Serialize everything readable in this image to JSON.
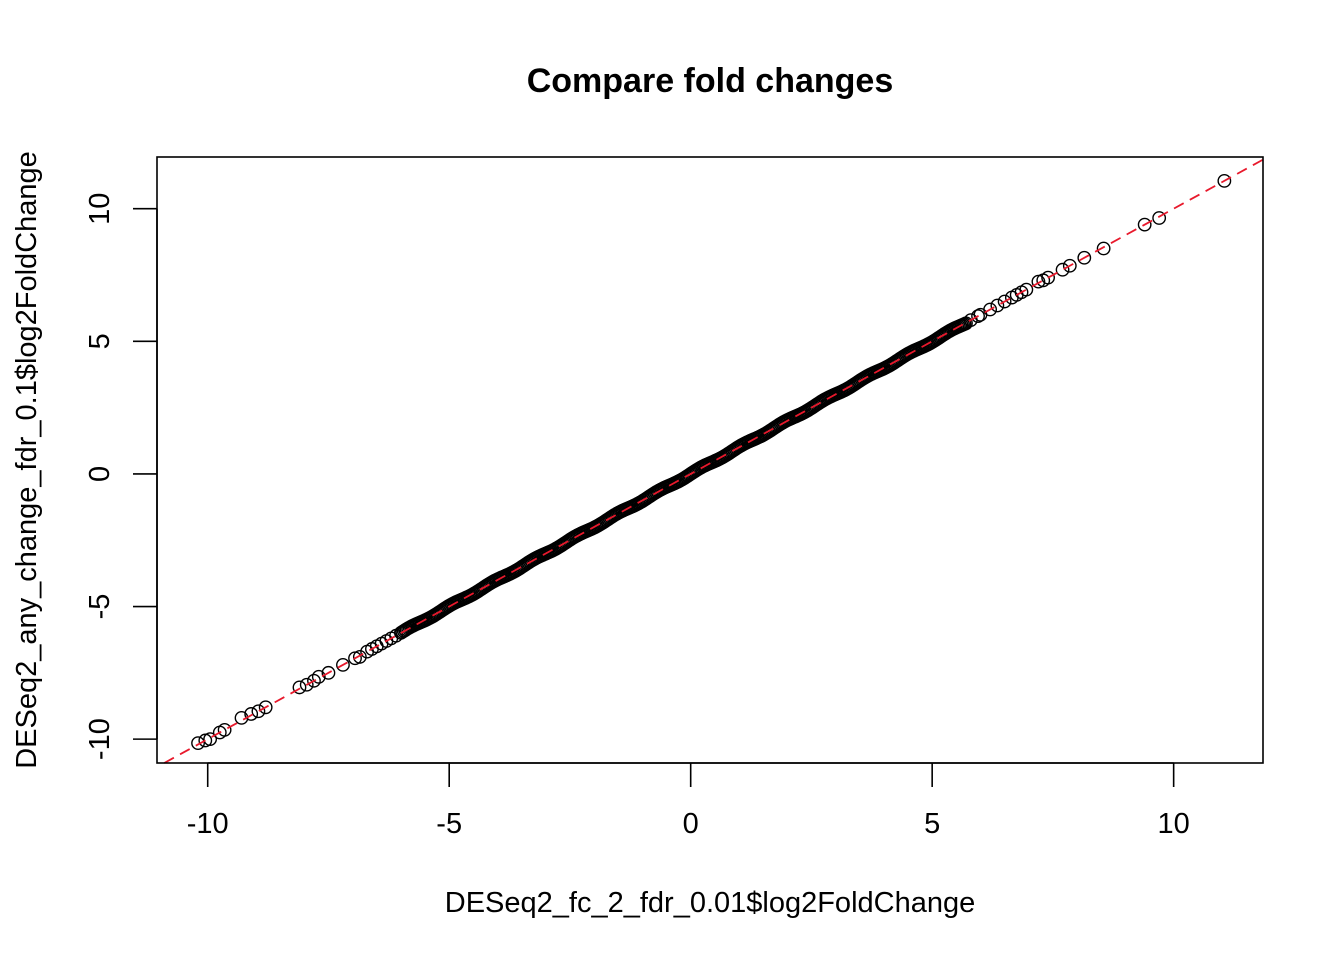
{
  "chart_data": {
    "type": "scatter",
    "title": "Compare fold changes",
    "xlabel": "DESeq2_fc_2_fdr_0.01$log2FoldChange",
    "ylabel": "DESeq2_any_change_fdr_0.1$log2FoldChange",
    "xlim": [
      -11.05,
      11.85
    ],
    "ylim": [
      -10.9,
      11.95
    ],
    "xticks": [
      -10,
      -5,
      0,
      5,
      10
    ],
    "yticks": [
      -10,
      -5,
      0,
      5,
      10
    ],
    "grid": false,
    "legend": "none",
    "reference_line": {
      "slope": 1,
      "intercept": 0,
      "color": "#e8192c",
      "style": "dashed"
    },
    "marker_color": "#000000",
    "dense_segment": {
      "x_start": -6.0,
      "x_end": 5.7
    },
    "points": [
      [
        -10.2,
        -10.15
      ],
      [
        -10.05,
        -10.05
      ],
      [
        -9.95,
        -10.0
      ],
      [
        -9.75,
        -9.75
      ],
      [
        -9.65,
        -9.65
      ],
      [
        -9.3,
        -9.2
      ],
      [
        -9.1,
        -9.05
      ],
      [
        -8.95,
        -8.95
      ],
      [
        -8.8,
        -8.8
      ],
      [
        -8.1,
        -8.05
      ],
      [
        -7.95,
        -7.95
      ],
      [
        -7.8,
        -7.8
      ],
      [
        -7.7,
        -7.65
      ],
      [
        -7.5,
        -7.5
      ],
      [
        -7.2,
        -7.2
      ],
      [
        -6.95,
        -6.95
      ],
      [
        -6.85,
        -6.9
      ],
      [
        -6.7,
        -6.7
      ],
      [
        -6.6,
        -6.6
      ],
      [
        -6.5,
        -6.5
      ],
      [
        -6.4,
        -6.4
      ],
      [
        -6.3,
        -6.3
      ],
      [
        -6.2,
        -6.2
      ],
      [
        -6.1,
        -6.1
      ],
      [
        5.8,
        5.8
      ],
      [
        5.95,
        5.95
      ],
      [
        6.0,
        6.0
      ],
      [
        6.2,
        6.2
      ],
      [
        6.35,
        6.35
      ],
      [
        6.5,
        6.5
      ],
      [
        6.65,
        6.65
      ],
      [
        6.75,
        6.75
      ],
      [
        6.85,
        6.85
      ],
      [
        6.95,
        6.95
      ],
      [
        7.2,
        7.25
      ],
      [
        7.3,
        7.3
      ],
      [
        7.4,
        7.4
      ],
      [
        7.7,
        7.7
      ],
      [
        7.85,
        7.85
      ],
      [
        8.15,
        8.15
      ],
      [
        8.55,
        8.5
      ],
      [
        9.4,
        9.4
      ],
      [
        9.7,
        9.65
      ],
      [
        11.05,
        11.05
      ]
    ]
  }
}
